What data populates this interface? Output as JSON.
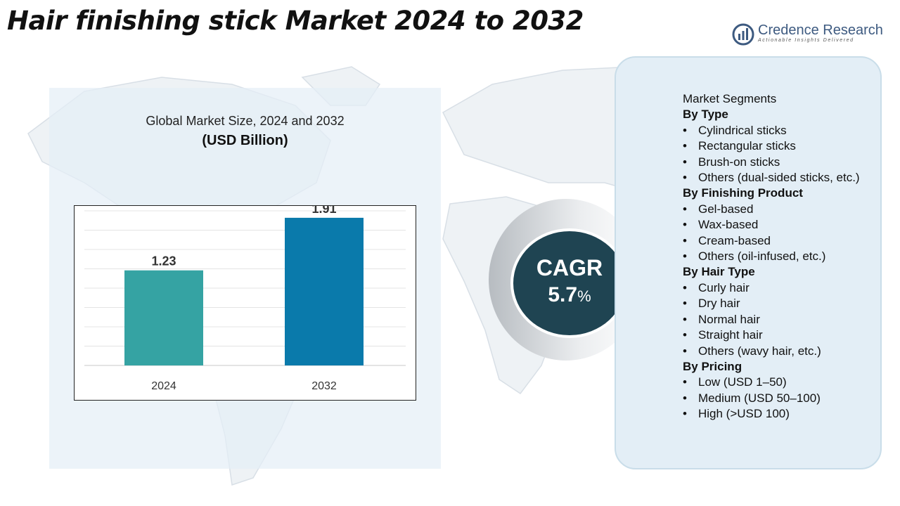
{
  "title": "Hair finishing stick Market 2024 to 2032",
  "logo": {
    "name": "Credence Research",
    "tagline": "Actionable Insights Delivered",
    "icon": "credence-logo-icon"
  },
  "chart_data": {
    "type": "bar",
    "title": "Global Market Size, 2024 and 2032",
    "unit": "(USD Billion)",
    "categories": [
      "2024",
      "2032"
    ],
    "values": [
      1.23,
      1.91
    ],
    "data_labels": [
      "1.23",
      "1.91"
    ],
    "ylim": [
      0,
      2.0
    ],
    "grid": true,
    "colors": [
      "#35a3a3",
      "#0a7aab"
    ]
  },
  "cagr": {
    "label": "CAGR",
    "value": "5.7",
    "unit": "%"
  },
  "segments": {
    "heading": "Market Segments",
    "groups": [
      {
        "title": "By Type",
        "items": [
          "Cylindrical sticks",
          "Rectangular sticks",
          "Brush-on sticks",
          "Others (dual-sided sticks, etc.)"
        ]
      },
      {
        "title": "By Finishing Product",
        "items": [
          "Gel-based",
          "Wax-based",
          "Cream-based",
          "Others (oil-infused, etc.)"
        ]
      },
      {
        "title": "By Hair Type",
        "items": [
          "Curly hair",
          "Dry hair",
          "Normal hair",
          "Straight hair",
          "Others (wavy hair, etc.)"
        ]
      },
      {
        "title": "By Pricing",
        "items": [
          "Low (USD 1–50)",
          "Medium (USD 50–100)",
          "High (>USD 100)"
        ]
      }
    ]
  },
  "colors": {
    "panel": "#e3eef6",
    "cagr_circle": "#1f4452",
    "bar_2024": "#35a3a3",
    "bar_2032": "#0a7aab"
  }
}
